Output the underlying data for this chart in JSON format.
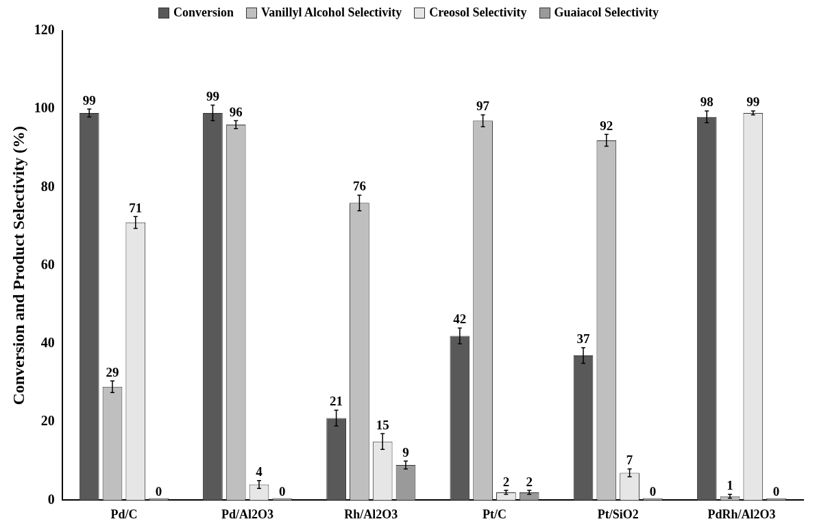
{
  "chart_data": {
    "type": "bar",
    "ylabel": "Conversion and Product Selectivity (%)",
    "categories": [
      "Pd/C",
      "Pd/Al2O3",
      "Rh/Al2O3",
      "Pt/C",
      "Pt/SiO2",
      "PdRh/Al2O3"
    ],
    "series": [
      {
        "name": "Conversion",
        "color": "#595959",
        "values": [
          99,
          99,
          21,
          42,
          37,
          98
        ],
        "errors": [
          1,
          2,
          2,
          2,
          2,
          1.5
        ]
      },
      {
        "name": "Vanillyl Alcohol Selectivity",
        "color": "#bfbfbf",
        "values": [
          29,
          96,
          76,
          97,
          92,
          1
        ],
        "errors": [
          1.5,
          1,
          2,
          1.5,
          1.5,
          0.5
        ]
      },
      {
        "name": "Creosol Selectivity",
        "color": "#e6e6e6",
        "values": [
          71,
          4,
          15,
          2,
          7,
          99
        ],
        "errors": [
          1.5,
          1,
          2,
          0.5,
          1,
          0.5
        ]
      },
      {
        "name": "Guaiacol Selectivity",
        "color": "#9a9a9a",
        "values": [
          0,
          0,
          9,
          2,
          0,
          0
        ],
        "errors": [
          null,
          null,
          1,
          0.5,
          null,
          null
        ]
      }
    ],
    "ylim": [
      0,
      120
    ],
    "yticks": [
      0,
      20,
      40,
      60,
      80,
      100,
      120
    ],
    "grid": false,
    "legend": "top",
    "data_labels": true
  }
}
